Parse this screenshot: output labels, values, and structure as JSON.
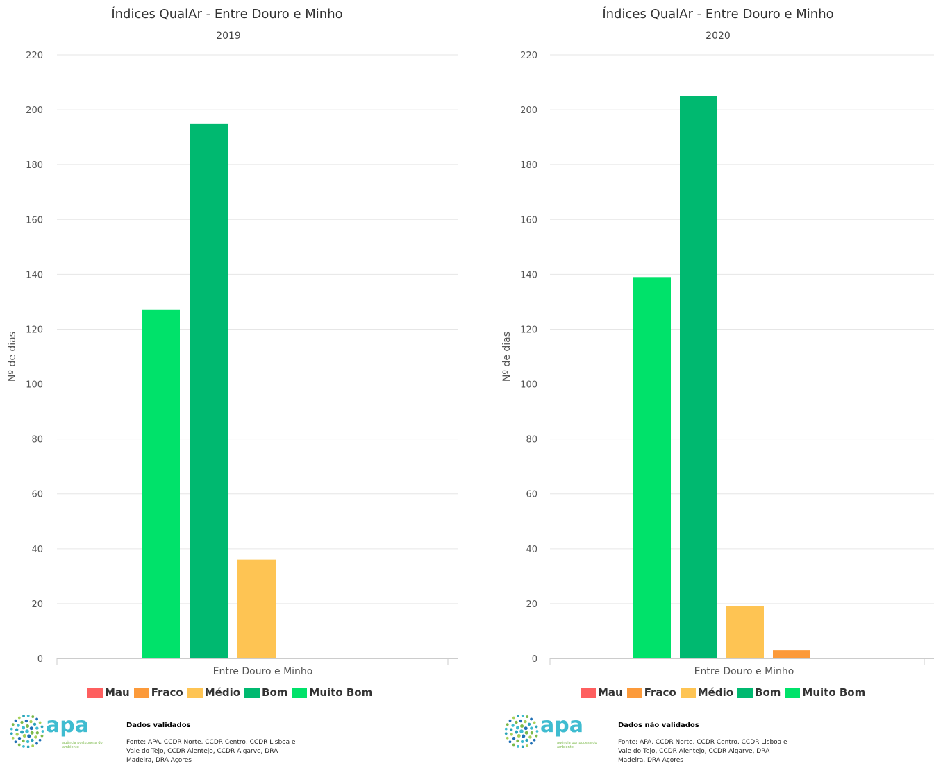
{
  "chart_data": [
    {
      "type": "bar",
      "title": "Índices QualAr - Entre Douro e Minho",
      "subtitle": "2019",
      "ylabel": "Nº de dias",
      "categories": [
        "Entre Douro e Minho"
      ],
      "ylim": [
        0,
        220
      ],
      "yticks": [
        "0",
        "20",
        "40",
        "60",
        "80",
        "100",
        "120",
        "140",
        "160",
        "180",
        "200",
        "220"
      ],
      "grid": true,
      "series": [
        {
          "name": "Mau",
          "values": [
            0
          ]
        },
        {
          "name": "Fraco",
          "values": [
            0
          ]
        },
        {
          "name": "Médio",
          "values": [
            36
          ]
        },
        {
          "name": "Bom",
          "values": [
            195
          ]
        },
        {
          "name": "Muito Bom",
          "values": [
            127
          ]
        }
      ],
      "legend_position": "bottom",
      "footnote_title": "Dados validados",
      "footnote_source": "Fonte: APA, CCDR Norte, CCDR Centro, CCDR Lisboa e Vale do Tejo, CCDR Alentejo, CCDR Algarve, DRA Madeira, DRA Açores"
    },
    {
      "type": "bar",
      "title": "Índices QualAr - Entre Douro e Minho",
      "subtitle": "2020",
      "ylabel": "Nº de dias",
      "categories": [
        "Entre Douro e Minho"
      ],
      "ylim": [
        0,
        220
      ],
      "yticks": [
        "0",
        "20",
        "40",
        "60",
        "80",
        "100",
        "120",
        "140",
        "160",
        "180",
        "200",
        "220"
      ],
      "grid": true,
      "series": [
        {
          "name": "Mau",
          "values": [
            0
          ]
        },
        {
          "name": "Fraco",
          "values": [
            3
          ]
        },
        {
          "name": "Médio",
          "values": [
            19
          ]
        },
        {
          "name": "Bom",
          "values": [
            205
          ]
        },
        {
          "name": "Muito Bom",
          "values": [
            139
          ]
        }
      ],
      "legend_position": "bottom",
      "footnote_title": "Dados não validados",
      "footnote_source": "Fonte: APA, CCDR Norte, CCDR Centro, CCDR Lisboa e Vale do Tejo, CCDR Alentejo, CCDR Algarve, DRA Madeira, DRA Açores"
    }
  ],
  "colors": {
    "Mau": "#fe5f5f",
    "Fraco": "#fc9a3a",
    "Médio": "#fec453",
    "Bom": "#00b970",
    "Muito Bom": "#00e26a",
    "grid": "#e6e6e6",
    "axis": "#cccccc"
  },
  "legend": {
    "order": [
      "Mau",
      "Fraco",
      "Médio",
      "Bom",
      "Muito Bom"
    ]
  },
  "logo": {
    "word": "apa",
    "tagline": "agência portuguesa do ambiente"
  }
}
